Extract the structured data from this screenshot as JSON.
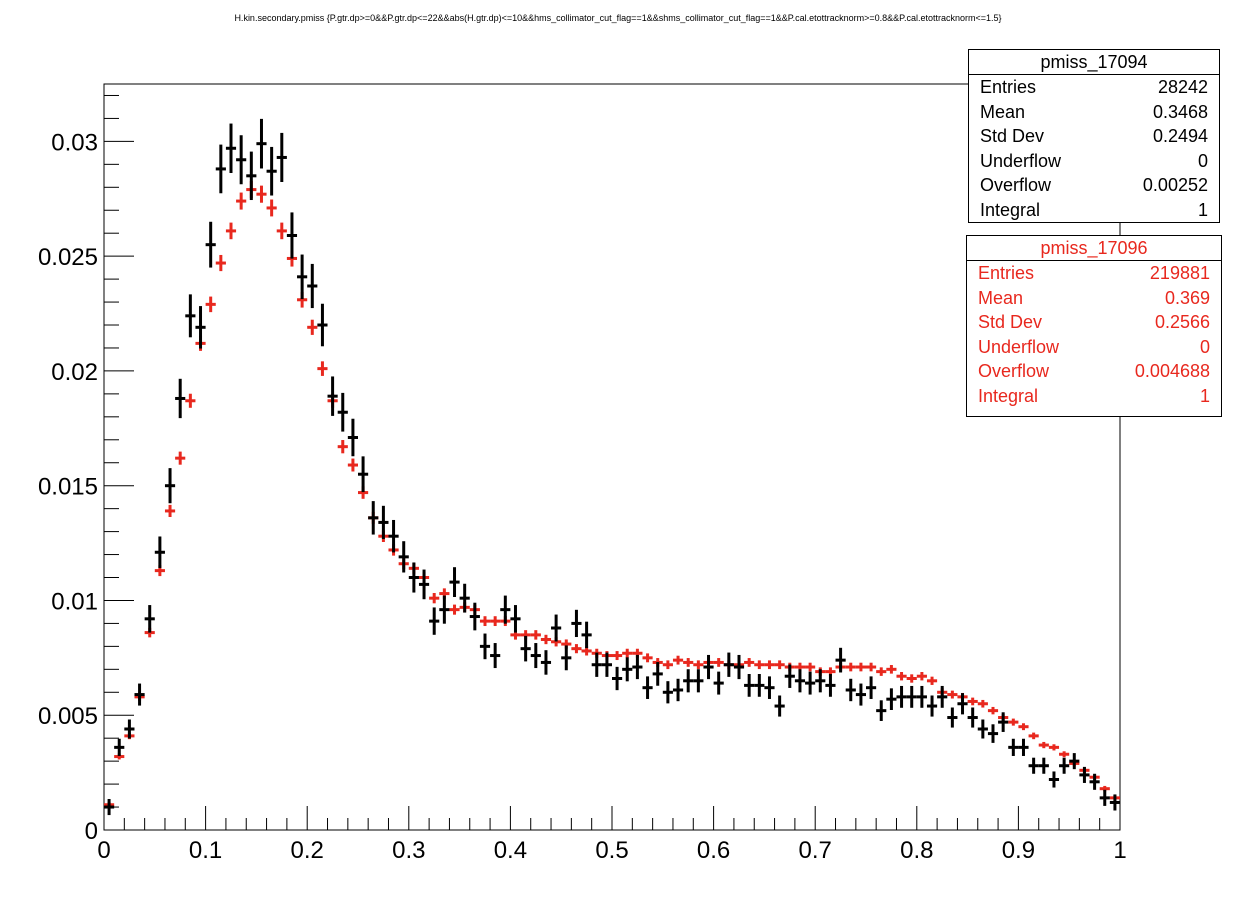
{
  "title": "H.kin.secondary.pmiss {P.gtr.dp>=0&&P.gtr.dp<=22&&abs(H.gtr.dp)<=10&&hms_collimator_cut_flag==1&&shms_collimator_cut_flag==1&&P.cal.etottracknorm>=0.8&&P.cal.etottracknorm<=1.5}",
  "colors": {
    "series1": "#000000",
    "series2": "#e8281e"
  },
  "stats": [
    {
      "name": "pmiss_17094",
      "rows": [
        {
          "label": "Entries",
          "value": "28242"
        },
        {
          "label": "Mean",
          "value": "0.3468"
        },
        {
          "label": "Std Dev",
          "value": "0.2494"
        },
        {
          "label": "Underflow",
          "value": "0"
        },
        {
          "label": "Overflow",
          "value": "0.00252"
        },
        {
          "label": "Integral",
          "value": "1"
        }
      ]
    },
    {
      "name": "pmiss_17096",
      "rows": [
        {
          "label": "Entries",
          "value": "219881"
        },
        {
          "label": "Mean",
          "value": "0.369"
        },
        {
          "label": "Std Dev",
          "value": "0.2566"
        },
        {
          "label": "Underflow",
          "value": "0"
        },
        {
          "label": "Overflow",
          "value": "0.004688"
        },
        {
          "label": "Integral",
          "value": "1"
        }
      ]
    }
  ],
  "chart_data": {
    "type": "scatter",
    "title": "H.kin.secondary.pmiss {P.gtr.dp>=0&&P.gtr.dp<=22&&abs(H.gtr.dp)<=10&&hms_collimator_cut_flag==1&&shms_collimator_cut_flag==1&&P.cal.etottracknorm>=0.8&&P.cal.etottracknorm<=1.5}",
    "xlabel": "",
    "ylabel": "",
    "xlim": [
      0,
      1
    ],
    "ylim": [
      0,
      0.0325
    ],
    "x_ticks": [
      "0",
      "0.1",
      "0.2",
      "0.3",
      "0.4",
      "0.5",
      "0.6",
      "0.7",
      "0.8",
      "0.9",
      "1"
    ],
    "y_ticks": [
      "0",
      "0.005",
      "0.01",
      "0.015",
      "0.02",
      "0.025",
      "0.03"
    ],
    "bin_width": 0.01,
    "x": [
      0.005,
      0.015,
      0.025,
      0.035,
      0.045,
      0.055,
      0.065,
      0.075,
      0.085,
      0.095,
      0.105,
      0.115,
      0.125,
      0.135,
      0.145,
      0.155,
      0.165,
      0.175,
      0.185,
      0.195,
      0.205,
      0.215,
      0.225,
      0.235,
      0.245,
      0.255,
      0.265,
      0.275,
      0.285,
      0.295,
      0.305,
      0.315,
      0.325,
      0.335,
      0.345,
      0.355,
      0.365,
      0.375,
      0.385,
      0.395,
      0.405,
      0.415,
      0.425,
      0.435,
      0.445,
      0.455,
      0.465,
      0.475,
      0.485,
      0.495,
      0.505,
      0.515,
      0.525,
      0.535,
      0.545,
      0.555,
      0.565,
      0.575,
      0.585,
      0.595,
      0.605,
      0.615,
      0.625,
      0.635,
      0.645,
      0.655,
      0.665,
      0.675,
      0.685,
      0.695,
      0.705,
      0.715,
      0.725,
      0.735,
      0.745,
      0.755,
      0.765,
      0.775,
      0.785,
      0.795,
      0.805,
      0.815,
      0.825,
      0.835,
      0.845,
      0.855,
      0.865,
      0.875,
      0.885,
      0.895,
      0.905,
      0.915,
      0.925,
      0.935,
      0.945,
      0.955,
      0.965,
      0.975,
      0.985,
      0.995
    ],
    "series": [
      {
        "name": "pmiss_17094",
        "values": [
          0.001,
          0.0036,
          0.0044,
          0.0059,
          0.0092,
          0.0121,
          0.015,
          0.0188,
          0.0224,
          0.0219,
          0.0255,
          0.0288,
          0.0297,
          0.0292,
          0.0285,
          0.0299,
          0.0287,
          0.0293,
          0.0259,
          0.0241,
          0.0237,
          0.022,
          0.0189,
          0.0182,
          0.0171,
          0.0155,
          0.0136,
          0.0134,
          0.0128,
          0.0119,
          0.011,
          0.0107,
          0.0091,
          0.0096,
          0.0108,
          0.0101,
          0.0093,
          0.008,
          0.0076,
          0.0096,
          0.0092,
          0.0079,
          0.0076,
          0.0073,
          0.0088,
          0.0075,
          0.009,
          0.0085,
          0.0072,
          0.0072,
          0.0066,
          0.007,
          0.0071,
          0.0062,
          0.0068,
          0.006,
          0.0061,
          0.0065,
          0.0065,
          0.0071,
          0.0064,
          0.0072,
          0.0071,
          0.0063,
          0.0063,
          0.0062,
          0.0054,
          0.0067,
          0.0065,
          0.0064,
          0.0065,
          0.0063,
          0.0074,
          0.0061,
          0.0059,
          0.0062,
          0.0052,
          0.0057,
          0.0058,
          0.0058,
          0.0058,
          0.0054,
          0.0058,
          0.0049,
          0.0055,
          0.0049,
          0.0044,
          0.0042,
          0.0047,
          0.0036,
          0.0036,
          0.0028,
          0.0028,
          0.0022,
          0.0028,
          0.003,
          0.0024,
          0.0021,
          0.0014,
          0.0012
        ]
      },
      {
        "name": "pmiss_17096",
        "values": [
          0.0011,
          0.0032,
          0.0041,
          0.0058,
          0.0086,
          0.0113,
          0.0139,
          0.0162,
          0.0187,
          0.0212,
          0.0229,
          0.0247,
          0.0261,
          0.0274,
          0.0279,
          0.0277,
          0.0271,
          0.0261,
          0.0249,
          0.0231,
          0.0219,
          0.0201,
          0.0187,
          0.0167,
          0.0159,
          0.0147,
          0.0136,
          0.0128,
          0.0122,
          0.0116,
          0.0114,
          0.011,
          0.0101,
          0.0103,
          0.0096,
          0.0097,
          0.0096,
          0.0091,
          0.0091,
          0.0091,
          0.0085,
          0.0085,
          0.0085,
          0.0083,
          0.0082,
          0.0081,
          0.0079,
          0.0078,
          0.0077,
          0.0076,
          0.0076,
          0.0077,
          0.0077,
          0.0075,
          0.0073,
          0.0072,
          0.0074,
          0.0073,
          0.0072,
          0.0073,
          0.0073,
          0.0072,
          0.0072,
          0.0073,
          0.0072,
          0.0072,
          0.0072,
          0.0071,
          0.0071,
          0.0071,
          0.0069,
          0.0069,
          0.0071,
          0.0071,
          0.0071,
          0.0071,
          0.0069,
          0.007,
          0.0067,
          0.0066,
          0.0067,
          0.0065,
          0.006,
          0.0059,
          0.0058,
          0.0056,
          0.0055,
          0.0052,
          0.0049,
          0.0047,
          0.0045,
          0.0041,
          0.0037,
          0.0036,
          0.0033,
          0.0029,
          0.0026,
          0.0023,
          0.0018,
          0.0014
        ]
      }
    ],
    "legend": "top-right"
  }
}
